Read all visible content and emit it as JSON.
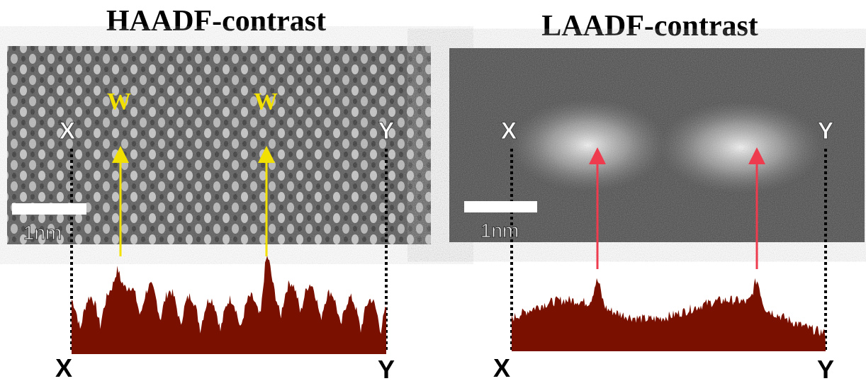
{
  "panels": [
    {
      "title": "HAADF-contrast",
      "markers": [
        "W",
        "W"
      ],
      "scale_bar": "1nm",
      "line_start": "X",
      "line_end": "Y",
      "profile_start": "X",
      "profile_end": "Y"
    },
    {
      "title": "LAADF-contrast",
      "scale_bar": "1nm",
      "line_start": "X",
      "line_end": "Y",
      "profile_start": "X",
      "profile_end": "Y"
    }
  ]
}
